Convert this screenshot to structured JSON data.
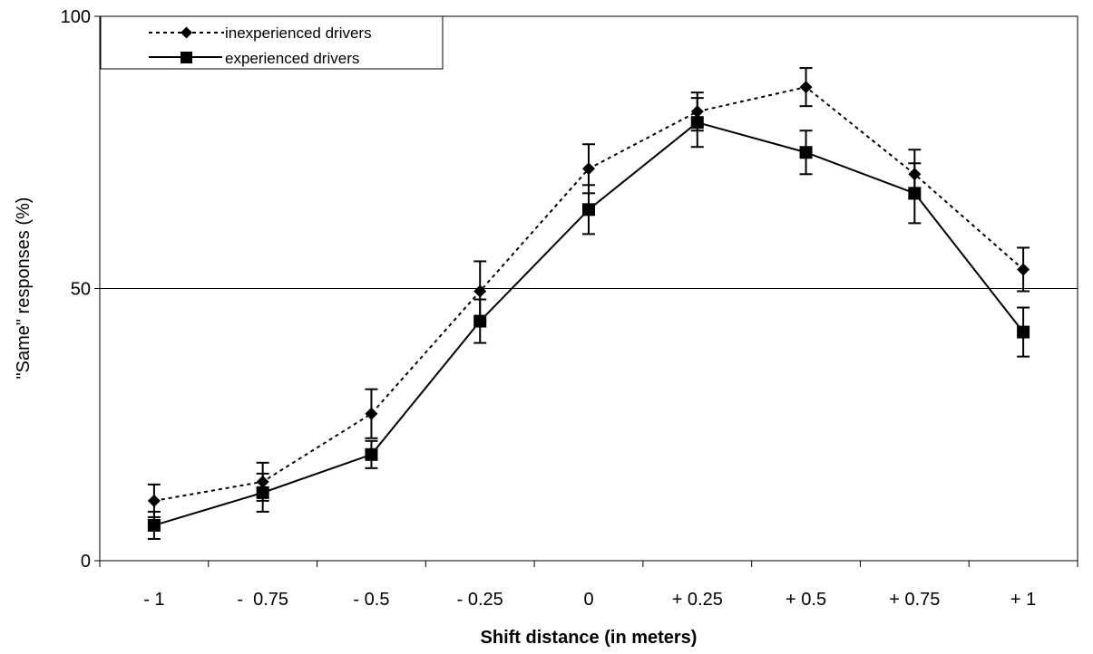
{
  "chart_data": {
    "type": "line",
    "xlabel": "Shift distance (in meters)",
    "ylabel": "\"Same\" responses (%)",
    "ylim": [
      0,
      100
    ],
    "yticks": [
      "0",
      "50",
      "100"
    ],
    "categories": [
      "- 1",
      "-  0.75",
      "- 0.5",
      "- 0.25",
      "0",
      "+ 0.25",
      "+ 0.5",
      "+ 0.75",
      "+ 1"
    ],
    "reference_line": 50,
    "legend_position": "top-left",
    "series": [
      {
        "name": "inexperienced drivers",
        "marker": "diamond",
        "line_style": "dotted",
        "values": [
          11,
          14.5,
          27,
          49.5,
          72,
          82.5,
          87,
          71,
          53.5
        ],
        "error": [
          3,
          3.5,
          4.5,
          5.5,
          4.5,
          3.5,
          3.5,
          4.5,
          4
        ]
      },
      {
        "name": "experienced drivers",
        "marker": "square",
        "line_style": "solid",
        "values": [
          6.5,
          12.5,
          19.5,
          44,
          64.5,
          80.5,
          75,
          67.5,
          42
        ],
        "error": [
          2.5,
          3.5,
          2.5,
          4,
          4.5,
          4.5,
          4,
          5.5,
          4.5
        ]
      }
    ]
  }
}
